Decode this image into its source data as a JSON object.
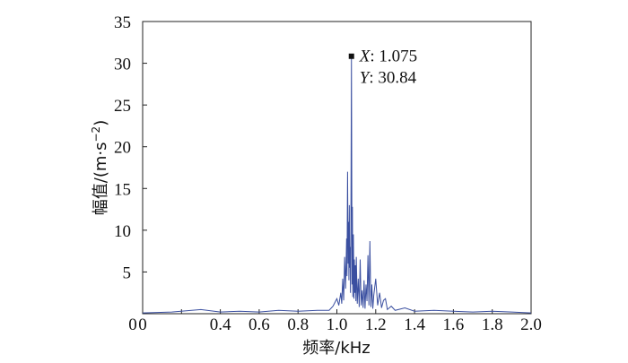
{
  "chart_data": {
    "type": "line",
    "xlabel": "频率/kHz",
    "ylabel_prefix": "幅值/(m·s",
    "ylabel_exponent": "−2",
    "ylabel_suffix": ")",
    "xlim": [
      0,
      2.0
    ],
    "ylim": [
      0,
      35
    ],
    "x_ticks": [
      0,
      0.2,
      0.4,
      0.6,
      0.8,
      1.0,
      1.2,
      1.4,
      1.6,
      1.8,
      2.0
    ],
    "x_tick_labels": [
      "0",
      "",
      "0.4",
      "0.6",
      "0.8",
      "1.0",
      "1.2",
      "1.4",
      "1.6",
      "1.8",
      "2.0"
    ],
    "y_ticks": [
      5,
      10,
      15,
      20,
      25,
      30,
      35
    ],
    "y_tick_labels": [
      "5",
      "10",
      "15",
      "20",
      "25",
      "30",
      "35"
    ],
    "grid": false,
    "series_color": "#3a4fa0",
    "series": [
      {
        "x": [
          0.0,
          0.15,
          0.3,
          0.4,
          0.5,
          0.6,
          0.7,
          0.8,
          0.9,
          0.96,
          0.98,
          1.0,
          1.01,
          1.02,
          1.025,
          1.03,
          1.035,
          1.04,
          1.045,
          1.05,
          1.052,
          1.055,
          1.058,
          1.06,
          1.062,
          1.064,
          1.066,
          1.068,
          1.07,
          1.072,
          1.075,
          1.078,
          1.08,
          1.082,
          1.085,
          1.088,
          1.09,
          1.093,
          1.095,
          1.098,
          1.1,
          1.105,
          1.11,
          1.115,
          1.12,
          1.125,
          1.13,
          1.135,
          1.14,
          1.145,
          1.15,
          1.155,
          1.16,
          1.165,
          1.17,
          1.175,
          1.18,
          1.185,
          1.19,
          1.2,
          1.21,
          1.22,
          1.23,
          1.24,
          1.25,
          1.26,
          1.28,
          1.3,
          1.35,
          1.4,
          1.5,
          1.6,
          1.7,
          1.8,
          1.9,
          2.0
        ],
        "y": [
          0.1,
          0.2,
          0.5,
          0.2,
          0.3,
          0.2,
          0.4,
          0.3,
          0.4,
          0.4,
          0.9,
          1.8,
          1.0,
          2.5,
          1.2,
          4.2,
          1.6,
          6.8,
          3.0,
          9.0,
          4.5,
          17.0,
          6.0,
          11.0,
          4.0,
          13.0,
          5.5,
          8.0,
          2.5,
          9.5,
          30.84,
          3.5,
          12.8,
          2.0,
          9.5,
          1.8,
          6.5,
          2.5,
          5.8,
          1.5,
          6.8,
          1.2,
          4.2,
          0.8,
          6.5,
          1.0,
          2.8,
          0.7,
          4.0,
          0.6,
          3.5,
          1.5,
          7.0,
          1.0,
          8.7,
          0.8,
          3.5,
          0.6,
          2.2,
          4.2,
          1.0,
          2.5,
          0.7,
          1.6,
          1.8,
          0.5,
          0.9,
          0.4,
          0.7,
          0.3,
          0.4,
          0.3,
          0.2,
          0.3,
          0.2,
          0.1
        ]
      }
    ],
    "annotation": {
      "x_label": "X",
      "x_value": "1.075",
      "y_label": "Y",
      "y_value": "30.84",
      "x": 1.075,
      "y": 30.84
    }
  }
}
